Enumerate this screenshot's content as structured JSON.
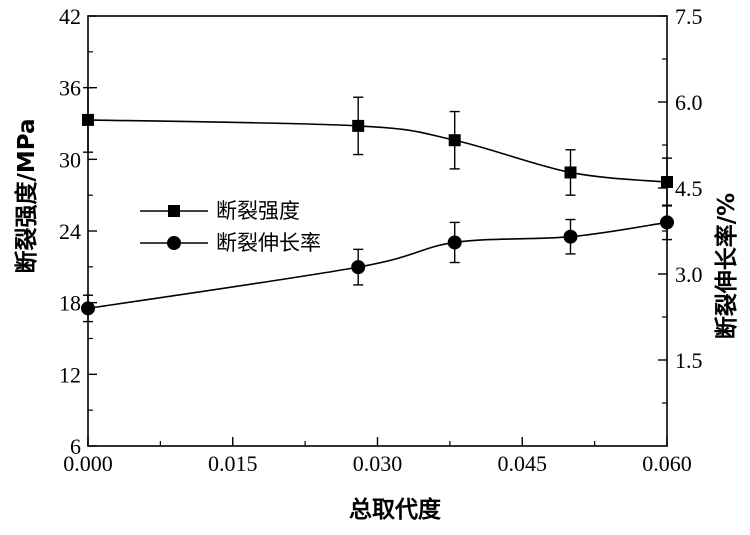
{
  "chart_data": {
    "type": "line",
    "xlabel": "总取代度",
    "ylabel_left": "断裂强度/MPa",
    "ylabel_right": "断裂伸长率/%",
    "xlim": [
      0.0,
      0.06
    ],
    "ylim_left": [
      6,
      42
    ],
    "ylim_right": [
      0,
      7.5
    ],
    "x_ticks": [
      "0.000",
      "0.015",
      "0.030",
      "0.045",
      "0.060"
    ],
    "y_left_ticks": [
      "6",
      "12",
      "18",
      "24",
      "30",
      "36",
      "42"
    ],
    "y_right_ticks": [
      "1.5",
      "3.0",
      "4.5",
      "6.0",
      "7.5"
    ],
    "grid": false,
    "legend_position": "left-middle",
    "series": [
      {
        "name": "断裂强度",
        "axis": "left",
        "marker": "square",
        "x": [
          0.0,
          0.028,
          0.038,
          0.05,
          0.06
        ],
        "y": [
          33.3,
          32.8,
          31.6,
          28.9,
          28.1
        ],
        "error": [
          2.7,
          2.4,
          2.4,
          1.9,
          2.0
        ]
      },
      {
        "name": "断裂伸长率",
        "axis": "right",
        "marker": "circle",
        "x": [
          0.0,
          0.028,
          0.038,
          0.05,
          0.06
        ],
        "y": [
          2.4,
          3.12,
          3.55,
          3.65,
          3.9
        ],
        "error": [
          0.23,
          0.31,
          0.35,
          0.3,
          0.3
        ]
      }
    ]
  }
}
